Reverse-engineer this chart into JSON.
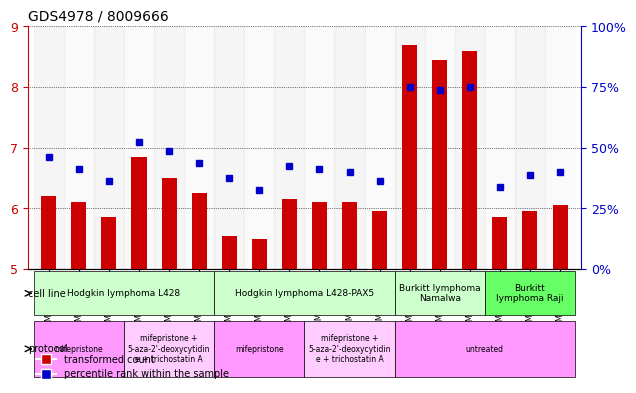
{
  "title": "GDS4978 / 8009666",
  "samples": [
    "GSM1081175",
    "GSM1081176",
    "GSM1081177",
    "GSM1081187",
    "GSM1081188",
    "GSM1081189",
    "GSM1081178",
    "GSM1081179",
    "GSM1081180",
    "GSM1081190",
    "GSM1081191",
    "GSM1081192",
    "GSM1081181",
    "GSM1081182",
    "GSM1081183",
    "GSM1081184",
    "GSM1081185",
    "GSM1081186"
  ],
  "bar_values": [
    6.2,
    6.1,
    5.85,
    6.85,
    6.5,
    6.25,
    5.55,
    5.5,
    6.15,
    6.1,
    6.1,
    5.95,
    8.7,
    8.45,
    8.6,
    5.85,
    5.95,
    6.05
  ],
  "dot_values": [
    6.85,
    6.65,
    6.45,
    7.1,
    6.95,
    6.75,
    6.5,
    6.3,
    6.7,
    6.65,
    6.6,
    6.45,
    8.0,
    7.95,
    8.0,
    6.35,
    6.55,
    6.6
  ],
  "ylim": [
    5,
    9
  ],
  "yticks_left": [
    5,
    6,
    7,
    8,
    9
  ],
  "yticks_right": [
    0,
    25,
    50,
    75,
    100
  ],
  "ytick_right_labels": [
    "0%",
    "25%",
    "50%",
    "75%",
    "100%"
  ],
  "bar_color": "#cc0000",
  "dot_color": "#0000cc",
  "cell_line_groups": [
    {
      "label": "Hodgkin lymphoma L428",
      "start": 0,
      "end": 6,
      "color": "#ccffcc"
    },
    {
      "label": "Hodgkin lymphoma L428-PAX5",
      "start": 6,
      "end": 12,
      "color": "#ccffcc"
    },
    {
      "label": "Burkitt lymphoma\nNamalwa",
      "start": 12,
      "end": 15,
      "color": "#ccffcc"
    },
    {
      "label": "Burkitt\nlymphoma Raji",
      "start": 15,
      "end": 18,
      "color": "#66ff66"
    }
  ],
  "protocol_groups": [
    {
      "label": "mifepristone",
      "start": 0,
      "end": 3,
      "color": "#ffaaff"
    },
    {
      "label": "mifepristone +\n5-aza-2'-deoxycytidin\ne + trichostatin A",
      "start": 3,
      "end": 6,
      "color": "#ffccff"
    },
    {
      "label": "mifepristone",
      "start": 6,
      "end": 9,
      "color": "#ffaaff"
    },
    {
      "label": "mifepristone +\n5-aza-2'-deoxycytidin\ne + trichostatin A",
      "start": 9,
      "end": 12,
      "color": "#ffccff"
    },
    {
      "label": "untreated",
      "start": 12,
      "end": 18,
      "color": "#ffaaff"
    }
  ],
  "legend_transformed": "transformed count",
  "legend_percentile": "percentile rank within the sample",
  "xlabel_cellline": "cell line",
  "xlabel_protocol": "protocol",
  "bg_color": "#ffffff",
  "grid_color": "#000000",
  "tick_color_left": "#cc0000",
  "tick_color_right": "#0000cc"
}
